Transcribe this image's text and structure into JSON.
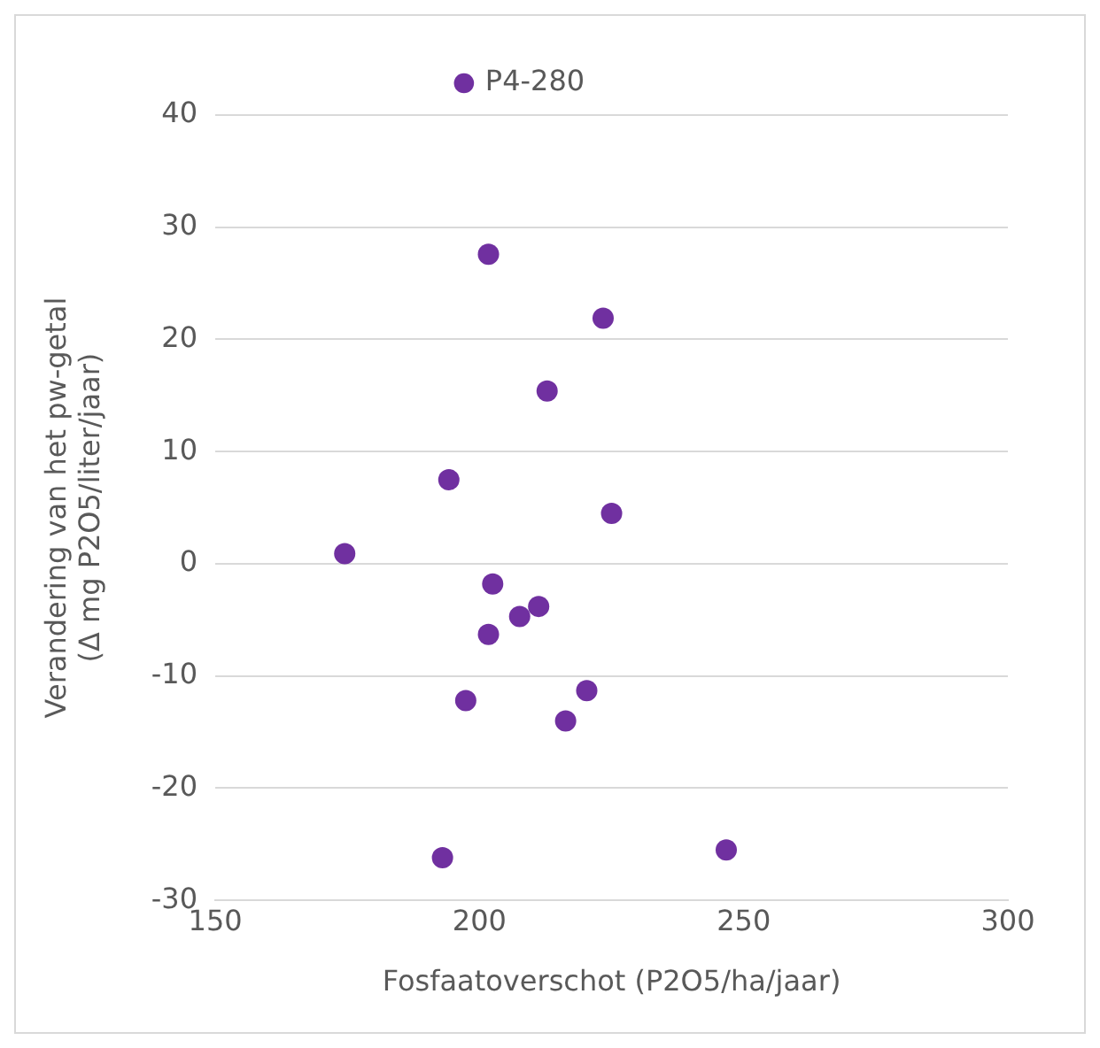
{
  "chart_data": {
    "type": "scatter",
    "xlabel": "Fosfaatoverschot (P2O5/ha/jaar)",
    "ylabel": "Verandering van het pw-getal\n(Δ mg P2O5/liter/jaar)",
    "series": [
      {
        "name": "P4-280",
        "color": "#7030a0",
        "x": [
          201.7,
          223.4,
          212.8,
          194.2,
          225,
          174.5,
          202.5,
          211.2,
          207.6,
          201.7,
          197.4,
          220.3,
          216.3,
          193,
          246.7
        ],
        "values": [
          27.6,
          21.9,
          15.4,
          7.5,
          4.5,
          0.9,
          -1.8,
          -3.8,
          -4.7,
          -6.3,
          -12.2,
          -11.3,
          -14,
          -26.2,
          -25.5
        ]
      }
    ],
    "xlim": [
      150,
      300
    ],
    "xticks": [
      150,
      200,
      250,
      300
    ],
    "ylim": [
      -30,
      40
    ],
    "yticks": [
      -30,
      -20,
      -10,
      0,
      10,
      20,
      30,
      40
    ],
    "grid": "y",
    "legend": "top",
    "marker": "circle"
  }
}
